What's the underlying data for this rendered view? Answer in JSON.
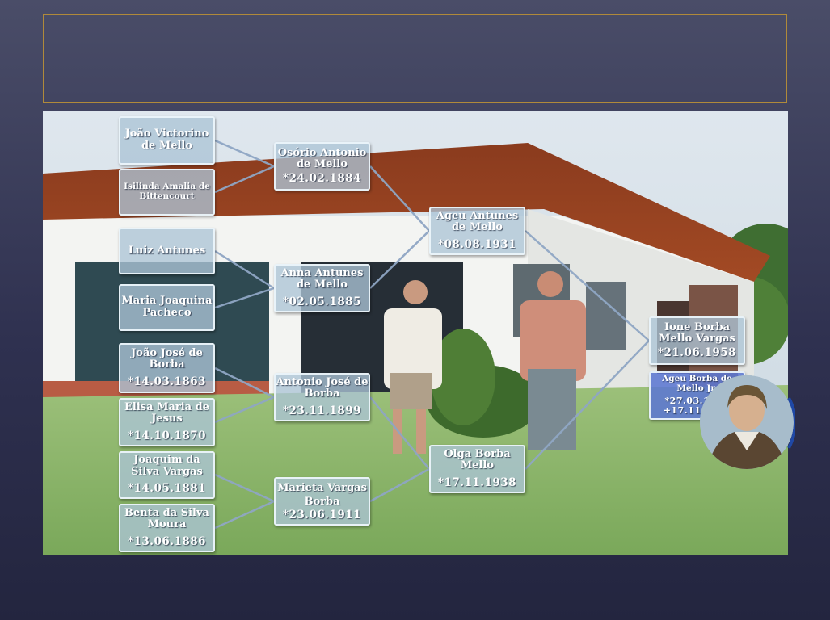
{
  "slide": {
    "title": ""
  },
  "tree": {
    "gen1": [
      {
        "name": "João Victorino de Mello",
        "date": ""
      },
      {
        "name": "Isilinda Amalia de Bittencourt",
        "date": ""
      },
      {
        "name": "Luiz Antunes",
        "date": ""
      },
      {
        "name": "Maria Joaquina Pacheco",
        "date": ""
      },
      {
        "name": "João José de Borba",
        "date": "*14.03.1863"
      },
      {
        "name": "Elisa Maria de Jesus",
        "date": "*14.10.1870"
      },
      {
        "name": "Joaquim da Silva Vargas",
        "date": "*14.05.1881"
      },
      {
        "name": "Benta da Silva Moura",
        "date": "*13.06.1886"
      }
    ],
    "gen2": [
      {
        "name": "Osório Antonio de Mello",
        "date": "*24.02.1884"
      },
      {
        "name": "Anna Antunes de Mello",
        "date": "*02.05.1885"
      },
      {
        "name": "Antonio José de Borba",
        "date": "*23.11.1899"
      },
      {
        "name": "Marieta Vargas Borba",
        "date": "*23.06.1911"
      }
    ],
    "gen3": [
      {
        "name": "Ageu Antunes de Mello",
        "date": "*08.08.1931"
      },
      {
        "name": "Olga Borba Mello",
        "date": "*17.11.1938"
      }
    ],
    "gen4": [
      {
        "name": "Ione  Borba Mello Vargas",
        "date": "*21.06.1958"
      },
      {
        "name": "Ageu Borba  de Mello Jr.",
        "date": "*27.03.1967",
        "date2": "+17.11.1979"
      }
    ]
  },
  "colors": {
    "node_fill": "#acc4d6",
    "connector": "#8fa6c4",
    "accent_node": "#5c78d2",
    "title_border": "#b08a3a"
  },
  "images": {
    "background_photo": "house-photo",
    "portrait": "portrait-photo"
  }
}
